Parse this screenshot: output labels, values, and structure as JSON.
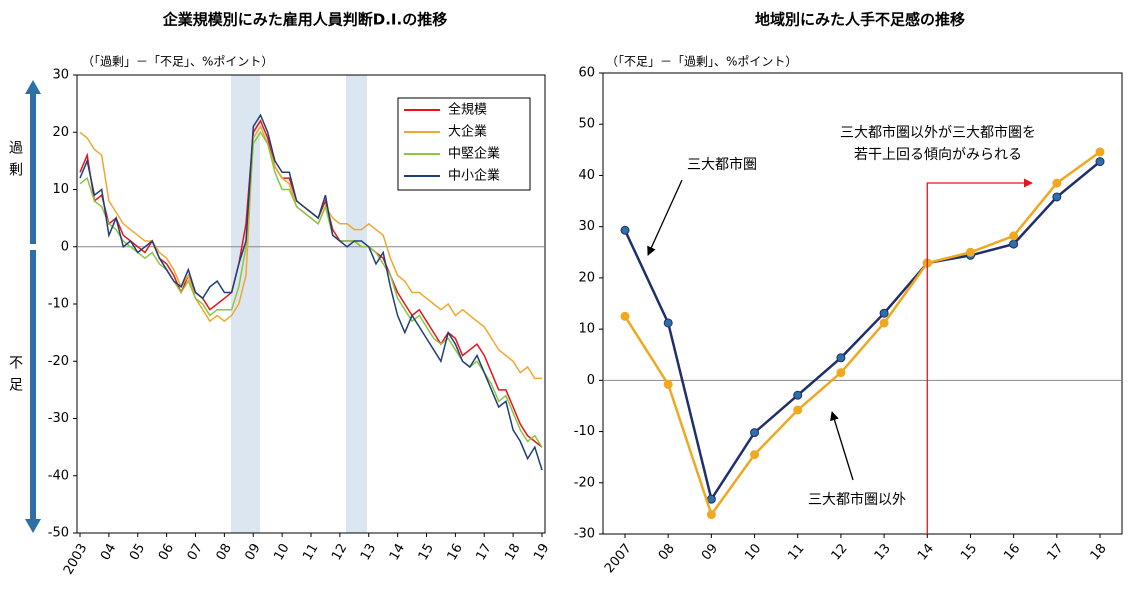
{
  "chart_data": [
    {
      "type": "line",
      "title": "企業規模別にみた雇用人員判断D.I.の推移",
      "axis_note": "（「過剰」－「不足」、%ポイント）",
      "side_labels": [
        "過剰",
        "不足"
      ],
      "categories": [
        "2003",
        null,
        null,
        null,
        "04",
        null,
        null,
        null,
        "05",
        null,
        null,
        null,
        "06",
        null,
        null,
        null,
        "07",
        null,
        null,
        null,
        "08",
        null,
        null,
        null,
        "09",
        null,
        null,
        null,
        "10",
        null,
        null,
        null,
        "11",
        null,
        null,
        null,
        "12",
        null,
        null,
        null,
        "13",
        null,
        null,
        null,
        "14",
        null,
        null,
        null,
        "15",
        null,
        null,
        null,
        "16",
        null,
        null,
        null,
        "17",
        null,
        null,
        null,
        "18",
        null,
        null,
        null,
        "19"
      ],
      "series": [
        {
          "name": "全規模",
          "color": "#e8141c",
          "values": [
            13,
            16,
            8,
            9,
            4,
            5,
            2,
            1,
            0,
            -1,
            1,
            -2,
            -3,
            -5,
            -8,
            -5,
            -8,
            -9,
            -11,
            -10,
            -9,
            -8,
            -3,
            4,
            20,
            22,
            19,
            14,
            12,
            12,
            8,
            7,
            6,
            5,
            8,
            3,
            1,
            1,
            1,
            0,
            0,
            -1,
            -2,
            -5,
            -8,
            -10,
            -12,
            -11,
            -13,
            -15,
            -17,
            -15,
            -16,
            -19,
            -18,
            -17,
            -19,
            -22,
            -25,
            -25,
            -28,
            -31,
            -33,
            -34,
            -35
          ]
        },
        {
          "name": "大企業",
          "color": "#f0a830",
          "values": [
            20,
            19,
            17,
            16,
            8,
            6,
            4,
            3,
            2,
            1,
            1,
            -1,
            -2,
            -4,
            -7,
            -5,
            -9,
            -11,
            -13,
            -12,
            -13,
            -12,
            -10,
            -5,
            19,
            21,
            18,
            14,
            12,
            11,
            7,
            6,
            5,
            4,
            7,
            5,
            4,
            4,
            3,
            3,
            4,
            3,
            2,
            -2,
            -5,
            -6,
            -8,
            -8,
            -9,
            -10,
            -11,
            -10,
            -12,
            -11,
            -12,
            -13,
            -14,
            -16,
            -18,
            -19,
            -20,
            -22,
            -21,
            -23,
            -23
          ]
        },
        {
          "name": "中堅企業",
          "color": "#8cc63f",
          "values": [
            11,
            12,
            8,
            7,
            4,
            3,
            1,
            0,
            -1,
            -2,
            -1,
            -3,
            -4,
            -6,
            -8,
            -6,
            -9,
            -10,
            -12,
            -11,
            -11,
            -11,
            -7,
            0,
            18,
            20,
            18,
            13,
            10,
            10,
            7,
            6,
            5,
            4,
            7,
            2,
            1,
            1,
            1,
            0,
            0,
            -1,
            -3,
            -5,
            -9,
            -11,
            -13,
            -12,
            -14,
            -16,
            -17,
            -16,
            -18,
            -20,
            -21,
            -20,
            -22,
            -24,
            -27,
            -26,
            -29,
            -32,
            -34,
            -33,
            -35
          ]
        },
        {
          "name": "中小企業",
          "color": "#1f3f7a",
          "values": [
            12,
            15,
            9,
            10,
            2,
            5,
            0,
            1,
            -1,
            0,
            1,
            -2,
            -4,
            -6,
            -7,
            -4,
            -8,
            -9,
            -7,
            -6,
            -8,
            -8,
            -3,
            1,
            21,
            23,
            20,
            15,
            13,
            13,
            8,
            7,
            6,
            5,
            9,
            2,
            1,
            0,
            1,
            1,
            0,
            -3,
            -1,
            -7,
            -12,
            -15,
            -12,
            -14,
            -16,
            -18,
            -20,
            -15,
            -17,
            -20,
            -21,
            -19,
            -22,
            -25,
            -28,
            -27,
            -32,
            -34,
            -37,
            -35,
            -39
          ]
        }
      ],
      "ylim": [
        -50,
        30
      ],
      "yticks": [
        -50,
        -40,
        -30,
        -20,
        -10,
        0,
        10,
        20,
        30
      ],
      "zero_line": true,
      "legend": "upper right",
      "markers": false
    },
    {
      "type": "line",
      "title": "地域別にみた人手不足感の推移",
      "axis_note": "（「不足」－「過剰」、%ポイント）",
      "annotations": [
        "三大都市圏以外が三大都市圏を",
        "若干上回る傾向がみられる"
      ],
      "categories": [
        "2007",
        "08",
        "09",
        "10",
        "11",
        "12",
        "13",
        "14",
        "15",
        "16",
        "17",
        "18"
      ],
      "series": [
        {
          "name": "三大都市圏",
          "color": "#1f2f6b",
          "values": [
            29.3,
            11.2,
            -23.2,
            -10.2,
            -2.9,
            4.4,
            13.1,
            22.9,
            24.4,
            26.6,
            35.8,
            42.7
          ]
        },
        {
          "name": "三大都市圏以外",
          "color": "#f0a820",
          "values": [
            12.5,
            -0.8,
            -26.2,
            -14.5,
            -5.8,
            1.5,
            11.2,
            22.9,
            25.0,
            28.2,
            38.5,
            44.6
          ]
        }
      ],
      "ylim": [
        -30,
        60
      ],
      "yticks": [
        -30,
        -20,
        -10,
        0,
        10,
        20,
        30,
        40,
        50,
        60
      ],
      "zero_line": true,
      "markers": true
    }
  ]
}
